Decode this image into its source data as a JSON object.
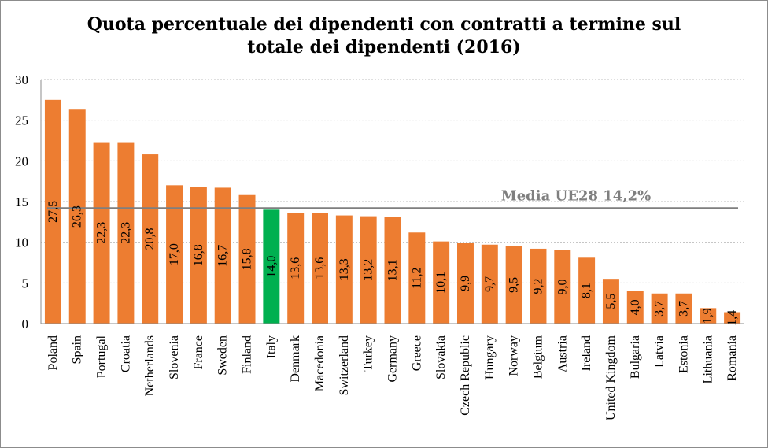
{
  "title_line1": "Quota  percentuale dei dipendenti con contratti a termine sul",
  "title_line2": "totale dei dipendenti (2016)",
  "chart_data": {
    "type": "bar",
    "title": "Quota  percentuale dei dipendenti con contratti a termine sul totale dei dipendenti (2016)",
    "categories": [
      "Poland",
      "Spain",
      "Portugal",
      "Croatia",
      "Netherlands",
      "Slovenia",
      "France",
      "Sweden",
      "Finland",
      "Italy",
      "Denmark",
      "Macedonia",
      "Switzerland",
      "Turkey",
      "Germany",
      "Greece",
      "Slovakia",
      "Czech Republic",
      "Hungary",
      "Norway",
      "Belgium",
      "Austria",
      "Ireland",
      "United Kingdom",
      "Bulgaria",
      "Latvia",
      "Estonia",
      "Lithuania",
      "Romania"
    ],
    "values": [
      27.5,
      26.3,
      22.3,
      22.3,
      20.8,
      17.0,
      16.8,
      16.7,
      15.8,
      14.0,
      13.6,
      13.6,
      13.3,
      13.2,
      13.1,
      11.2,
      10.1,
      9.9,
      9.7,
      9.5,
      9.2,
      9.0,
      8.1,
      5.5,
      4.0,
      3.7,
      3.7,
      1.9,
      1.4
    ],
    "data_labels": [
      "27,5",
      "26,3",
      "22,3",
      "22,3",
      "20,8",
      "17,0",
      "16,8",
      "16,7",
      "15,8",
      "14,0",
      "13,6",
      "13,6",
      "13,3",
      "13,2",
      "13,1",
      "11,2",
      "10,1",
      "9,9",
      "9,7",
      "9,5",
      "9,2",
      "9,0",
      "8,1",
      "5,5",
      "4,0",
      "3,7",
      "3,7",
      "1,9",
      "1,4"
    ],
    "highlight_category": "Italy",
    "ylim": [
      0,
      30
    ],
    "yticks": [
      0,
      5,
      10,
      15,
      20,
      25,
      30
    ],
    "grid": true,
    "legend": "none",
    "reference_line": {
      "value": 14.2,
      "label": "Media UE28 14,2%"
    },
    "colors": {
      "bar": "#ed7d31",
      "highlight": "#00b050",
      "reference_line": "#7f7f7f",
      "gridline": "#bfbfbf"
    }
  }
}
